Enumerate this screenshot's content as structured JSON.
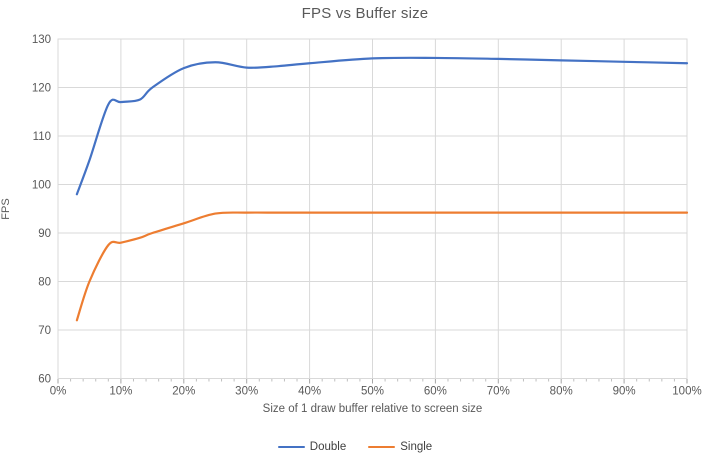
{
  "chart_data": {
    "type": "line",
    "title": "FPS vs Buffer size",
    "xlabel": "Size of 1 draw buffer relative to screen size",
    "ylabel": "FPS",
    "xlim": [
      0,
      100
    ],
    "ylim": [
      60,
      130
    ],
    "x_tick_step": 10,
    "x_minor_tick_step": 2,
    "y_tick_step": 10,
    "x_tick_suffix": "%",
    "grid": true,
    "smooth_lines": true,
    "legend_position": "bottom",
    "x": [
      3,
      5,
      8,
      10,
      13,
      15,
      20,
      25,
      30,
      35,
      40,
      50,
      60,
      70,
      80,
      90,
      100
    ],
    "series": [
      {
        "name": "Double",
        "color": "#4472C4",
        "values": [
          98,
          105,
          116.5,
          117,
          117.5,
          120,
          124,
          125.2,
          124.1,
          124.4,
          125,
          126,
          126.1,
          125.9,
          125.6,
          125.3,
          125
        ]
      },
      {
        "name": "Single",
        "color": "#ED7D31",
        "values": [
          72,
          80,
          87.5,
          88,
          89,
          90,
          92,
          94,
          94.2,
          94.2,
          94.2,
          94.2,
          94.2,
          94.2,
          94.2,
          94.2,
          94.2
        ]
      }
    ],
    "colors": {
      "gridline": "#D9D9D9",
      "plot_border": "#D9D9D9",
      "tick_major": "#A6A6A6",
      "tick_minor": "#BFBFBF",
      "axis_text": "#595959",
      "title_text": "#595959",
      "legend_text": "#404040"
    }
  }
}
